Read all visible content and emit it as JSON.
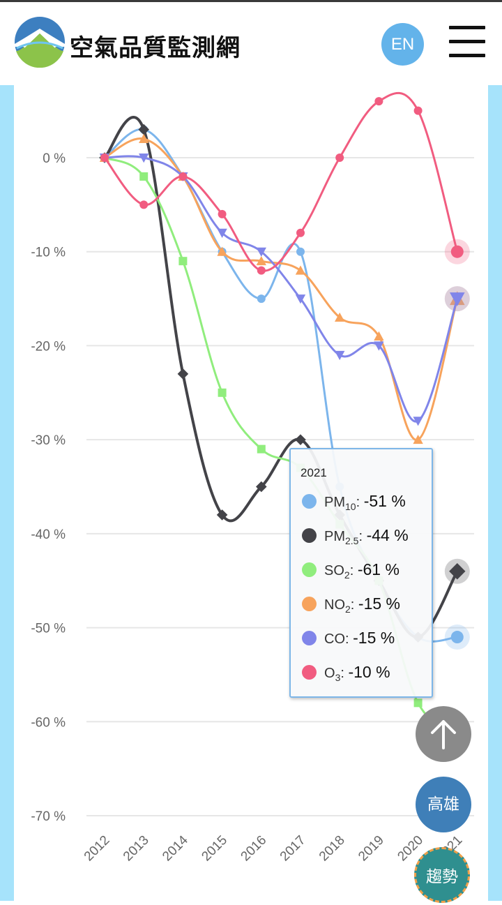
{
  "header": {
    "site_title": "空氣品質監測網",
    "lang_label": "EN",
    "logo_icon": "mountain-logo-icon",
    "menu_icon": "hamburger-menu-icon"
  },
  "chart_data": {
    "type": "line",
    "x": [
      "2012",
      "2013",
      "2014",
      "2015",
      "2016",
      "2017",
      "2018",
      "2019",
      "2020",
      "2021"
    ],
    "ylim": [
      -70,
      5
    ],
    "yticks": [
      0,
      -10,
      -20,
      -30,
      -40,
      -50,
      -60,
      -70
    ],
    "ytick_labels": [
      "0 %",
      "-10 %",
      "-20 %",
      "-30 %",
      "-40 %",
      "-50 %",
      "-60 %",
      "-70 %"
    ],
    "grid": true,
    "series": [
      {
        "name": "PM10",
        "sub": "10",
        "base": "PM",
        "color": "#7cb5ec",
        "marker": "circle",
        "values": [
          0,
          3,
          -2,
          -10,
          -15,
          -10,
          -35,
          -45,
          -51,
          -51
        ]
      },
      {
        "name": "PM2.5",
        "sub": "2.5",
        "base": "PM",
        "color": "#434348",
        "marker": "diamond",
        "values": [
          0,
          3,
          -23,
          -38,
          -35,
          -30,
          -38,
          -45,
          -51,
          -44
        ]
      },
      {
        "name": "SO2",
        "sub": "2",
        "base": "SO",
        "color": "#90ed7d",
        "marker": "square",
        "values": [
          0,
          -2,
          -11,
          -25,
          -31,
          -33,
          -39,
          -45,
          -58,
          -61
        ]
      },
      {
        "name": "NO2",
        "sub": "2",
        "base": "NO",
        "color": "#f7a35c",
        "marker": "triangle",
        "values": [
          0,
          2,
          -2,
          -10,
          -11,
          -12,
          -17,
          -19,
          -30,
          -15
        ]
      },
      {
        "name": "CO",
        "sub": "",
        "base": "CO",
        "color": "#8085e9",
        "marker": "triangle-down",
        "values": [
          0,
          0,
          -2,
          -8,
          -10,
          -15,
          -21,
          -20,
          -28,
          -15
        ]
      },
      {
        "name": "O3",
        "sub": "3",
        "base": "O",
        "color": "#f15c80",
        "marker": "circle",
        "values": [
          0,
          -5,
          -2,
          -6,
          -12,
          -8,
          0,
          6,
          5,
          -10
        ]
      }
    ]
  },
  "tooltip": {
    "title": "2021",
    "rows": [
      {
        "base": "PM",
        "sub": "10",
        "value": "-51 %",
        "color": "#7cb5ec"
      },
      {
        "base": "PM",
        "sub": "2.5",
        "value": "-44 %",
        "color": "#434348"
      },
      {
        "base": "SO",
        "sub": "2",
        "value": "-61 %",
        "color": "#90ed7d"
      },
      {
        "base": "NO",
        "sub": "2",
        "value": "-15 %",
        "color": "#f7a35c"
      },
      {
        "base": "CO",
        "sub": "",
        "value": "-15 %",
        "color": "#8085e9"
      },
      {
        "base": "O",
        "sub": "3",
        "value": "-10 %",
        "color": "#f15c80"
      }
    ]
  },
  "fabs": {
    "top_icon": "arrow-up-icon",
    "city_label": "高雄",
    "trend_label": "趨勢"
  }
}
